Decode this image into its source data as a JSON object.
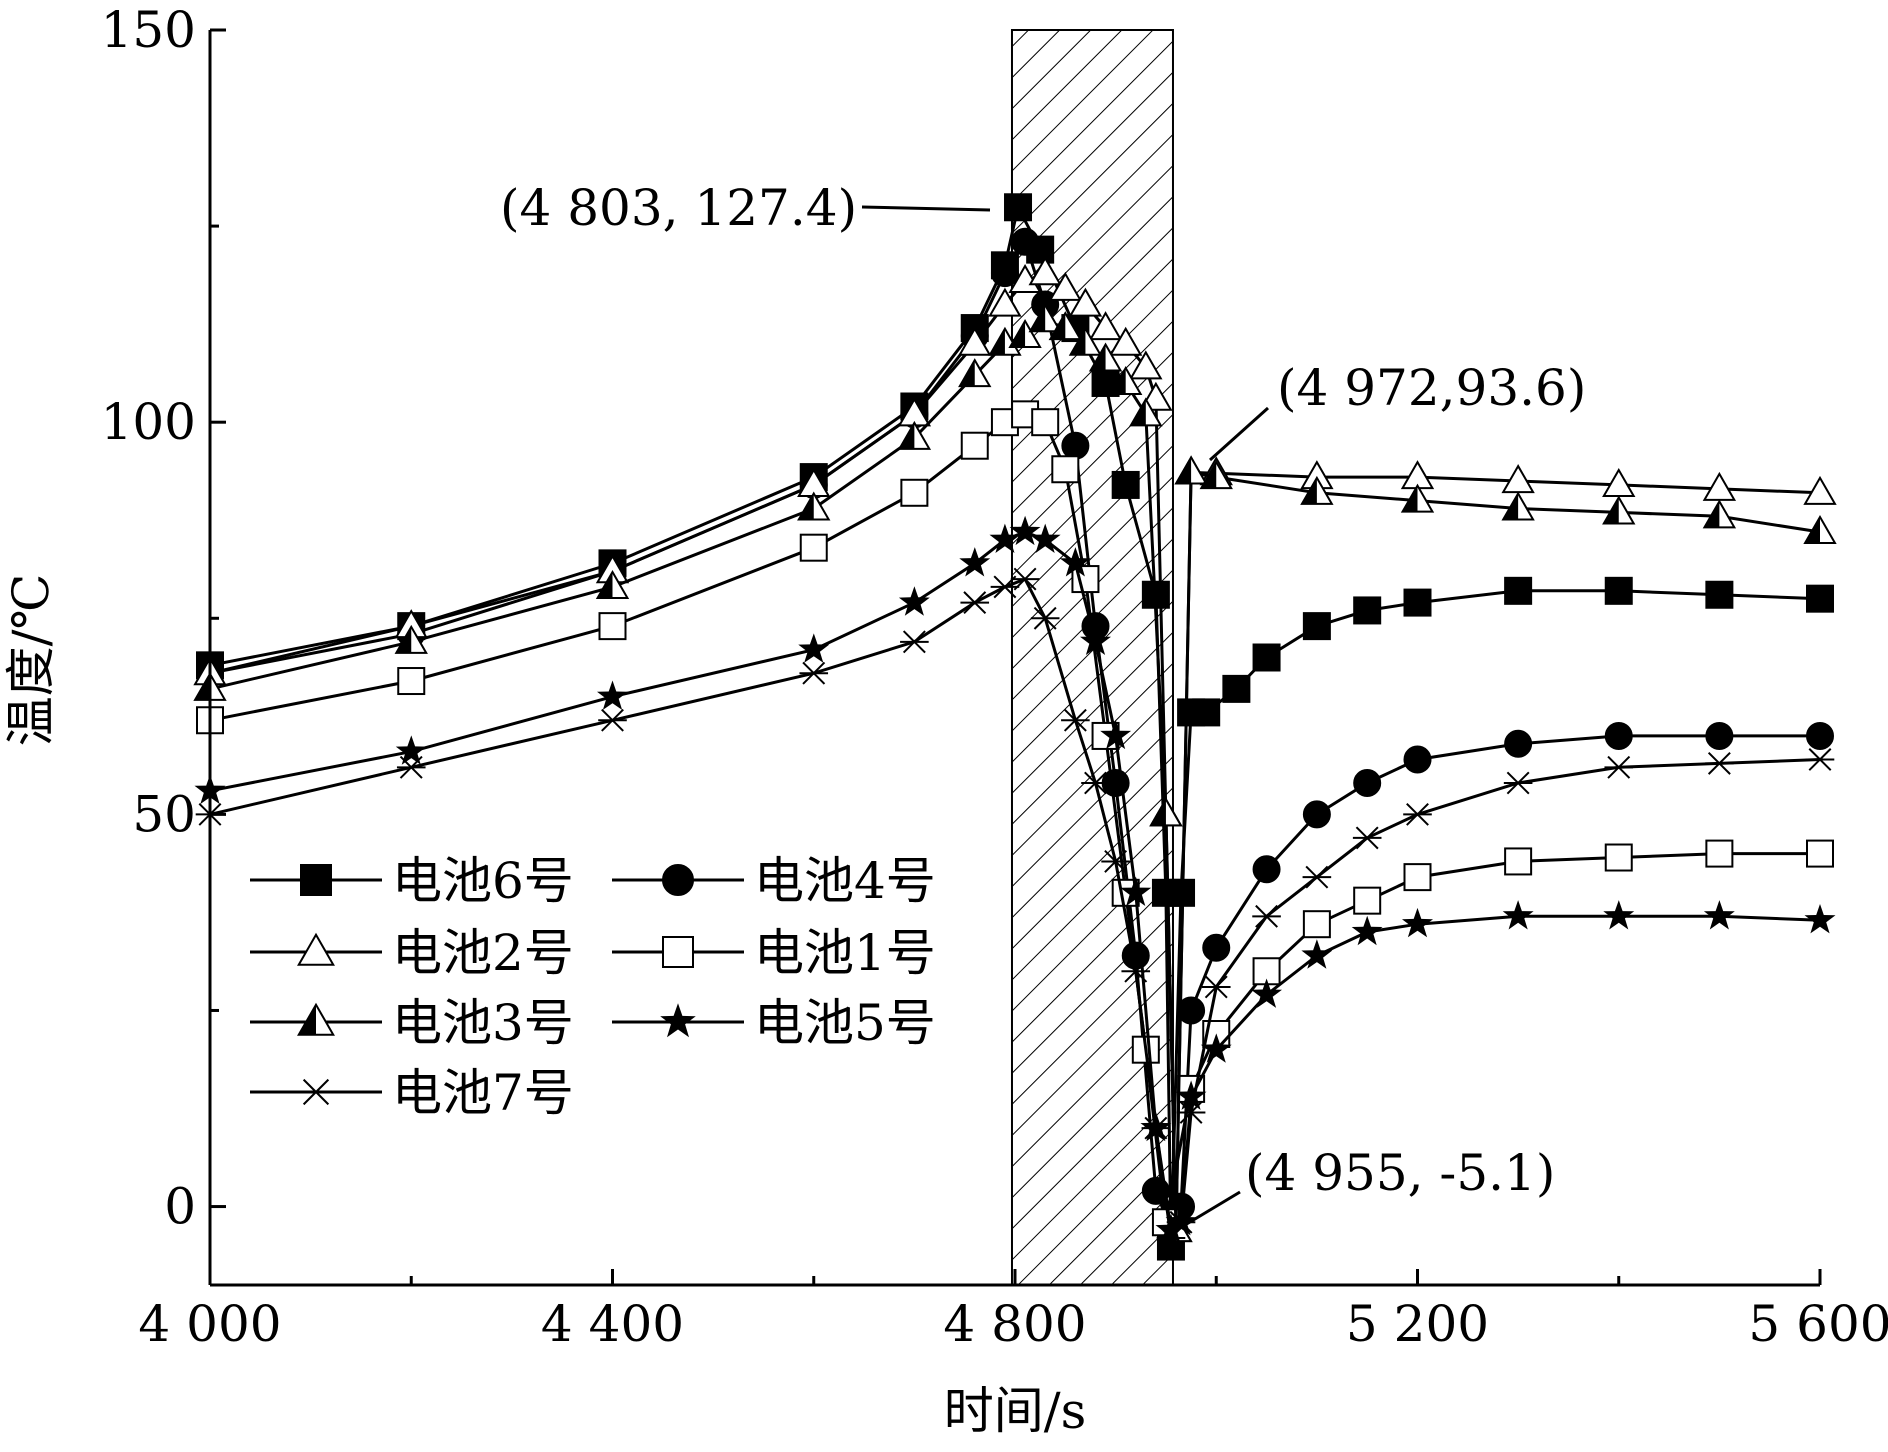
{
  "chart_data": {
    "type": "line",
    "xlabel": "时间/s",
    "ylabel": "温度/℃",
    "xlim": [
      4000,
      5600
    ],
    "ylim": [
      -10,
      150
    ],
    "x_ticks": [
      {
        "value": 4000,
        "label": "4 000"
      },
      {
        "value": 4400,
        "label": "4 400"
      },
      {
        "value": 4800,
        "label": "4 800"
      },
      {
        "value": 5200,
        "label": "5 200"
      },
      {
        "value": 5600,
        "label": "5 600"
      }
    ],
    "y_ticks": [
      {
        "value": 0,
        "label": "0"
      },
      {
        "value": 50,
        "label": "50"
      },
      {
        "value": 100,
        "label": "100"
      },
      {
        "value": 150,
        "label": "150"
      }
    ],
    "shaded_region": {
      "x_start": 4797,
      "x_end": 4957,
      "pattern": "diagonal-hatch"
    },
    "legend_position": "lower-left",
    "annotations": [
      {
        "text": "(4 803, 127.4)",
        "x": 4803,
        "y": 127.4
      },
      {
        "text": "(4 972,93.6)",
        "x": 4972,
        "y": 93.6
      },
      {
        "text": "(4 955, -5.1)",
        "x": 4955,
        "y": -5.1
      }
    ],
    "series": [
      {
        "name": "电池6号",
        "marker": "square-filled",
        "x": [
          4000,
          4200,
          4400,
          4600,
          4700,
          4760,
          4790,
          4803,
          4825,
          4860,
          4890,
          4910,
          4940,
          4950,
          4955,
          4965,
          4975,
          4990,
          5020,
          5050,
          5100,
          5150,
          5200,
          5300,
          5400,
          5500,
          5600
        ],
        "y": [
          69,
          74,
          82,
          93,
          102,
          112,
          120,
          127.4,
          122,
          112,
          105,
          92,
          78,
          40,
          -5.1,
          40,
          63,
          63,
          66,
          70,
          74,
          76,
          77,
          78.5,
          78.5,
          78,
          77.5
        ]
      },
      {
        "name": "电池4号",
        "marker": "circle-filled",
        "x": [
          4000,
          4200,
          4400,
          4600,
          4700,
          4760,
          4790,
          4810,
          4830,
          4860,
          4880,
          4900,
          4920,
          4940,
          4955,
          4965,
          4975,
          5000,
          5050,
          5100,
          5150,
          5200,
          5300,
          5400,
          5500,
          5600
        ],
        "y": [
          68,
          73,
          81,
          92,
          101,
          111,
          119,
          123,
          115,
          97,
          74,
          54,
          32,
          2,
          -3,
          0,
          25,
          33,
          43,
          50,
          54,
          57,
          59,
          60,
          60,
          60
        ]
      },
      {
        "name": "电池2号",
        "marker": "triangle-open",
        "x": [
          4000,
          4200,
          4400,
          4600,
          4700,
          4760,
          4790,
          4810,
          4830,
          4850,
          4870,
          4890,
          4910,
          4930,
          4940,
          4950,
          4960,
          4975,
          5000,
          5100,
          5200,
          5300,
          5400,
          5500,
          5600
        ],
        "y": [
          68,
          74,
          81,
          92,
          101,
          110,
          115,
          118,
          119,
          117,
          115,
          112,
          110,
          107,
          103,
          50,
          -3,
          93.6,
          93.5,
          93,
          93,
          92.5,
          92,
          91.5,
          91
        ]
      },
      {
        "name": "电池1号",
        "marker": "square-open",
        "x": [
          4000,
          4200,
          4400,
          4600,
          4700,
          4760,
          4790,
          4810,
          4830,
          4850,
          4870,
          4890,
          4910,
          4930,
          4950,
          4975,
          5000,
          5050,
          5100,
          5150,
          5200,
          5300,
          5400,
          5500,
          5600
        ],
        "y": [
          62,
          67,
          74,
          84,
          91,
          97,
          100,
          101,
          100,
          94,
          80,
          60,
          40,
          20,
          -2,
          15,
          22,
          30,
          36,
          39,
          42,
          44,
          44.5,
          45,
          45
        ]
      },
      {
        "name": "电池3号",
        "marker": "triangle-half",
        "x": [
          4000,
          4200,
          4400,
          4600,
          4700,
          4760,
          4790,
          4810,
          4830,
          4850,
          4870,
          4890,
          4910,
          4930,
          4950,
          4960,
          4975,
          5000,
          5100,
          5200,
          5300,
          5400,
          5500,
          5600
        ],
        "y": [
          66,
          72,
          79,
          89,
          98,
          106,
          110,
          111,
          113,
          112,
          110,
          108,
          105,
          101,
          50,
          -3,
          93.6,
          93,
          91,
          90,
          89,
          88.5,
          88,
          86
        ]
      },
      {
        "name": "电池5号",
        "marker": "star-filled",
        "x": [
          4000,
          4200,
          4400,
          4600,
          4700,
          4760,
          4790,
          4810,
          4830,
          4860,
          4880,
          4900,
          4920,
          4940,
          4955,
          4965,
          4975,
          5000,
          5050,
          5100,
          5150,
          5200,
          5300,
          5400,
          5500,
          5600
        ],
        "y": [
          53,
          58,
          65,
          71,
          77,
          82,
          85,
          86,
          85,
          82,
          72,
          60,
          40,
          10,
          -3,
          -2,
          14,
          20,
          27,
          32,
          35,
          36,
          37,
          37,
          37,
          36.5
        ]
      },
      {
        "name": "电池7号",
        "marker": "asterisk",
        "x": [
          4000,
          4200,
          4400,
          4600,
          4700,
          4760,
          4790,
          4810,
          4830,
          4860,
          4880,
          4900,
          4920,
          4940,
          4955,
          4965,
          4975,
          5000,
          5050,
          5100,
          5150,
          5200,
          5300,
          5400,
          5500,
          5600
        ],
        "y": [
          50,
          56,
          62,
          68,
          72,
          77,
          79,
          80,
          75,
          62,
          54,
          44,
          30,
          10,
          -4,
          -2,
          12,
          28,
          37,
          42,
          47,
          50,
          54,
          56,
          56.5,
          57
        ]
      }
    ]
  }
}
